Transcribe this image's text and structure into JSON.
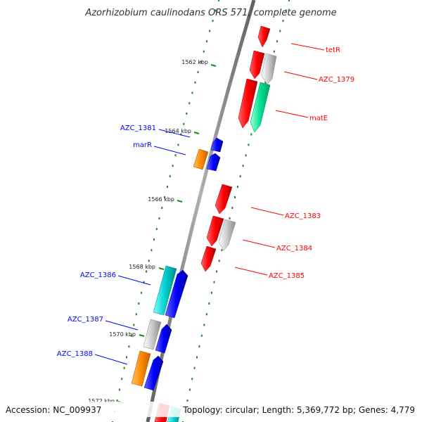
{
  "title": "Azorhizobium caulinodans ORS 571, complete genome",
  "footer": {
    "accession": "Accession: NC_009937",
    "summary": "Topology: circular; Length: 5,369,772 bp; Genes: 4,779"
  },
  "ticks": [
    {
      "label": "1562 kbp"
    },
    {
      "label": "1564 kbp"
    },
    {
      "label": "1566 kbp"
    },
    {
      "label": "1568 kbp"
    },
    {
      "label": "1570 kbp"
    },
    {
      "label": "1572 kbp"
    }
  ],
  "genes": [
    {
      "id": "tetR",
      "label": "tetR",
      "color": "#ff0000",
      "icon": "gene-arrow-icon"
    },
    {
      "id": "azc1379",
      "label": "AZC_1379",
      "color": "#c0c0c0",
      "icon": "gene-arrow-icon"
    },
    {
      "id": "matE",
      "label": "matE",
      "color": "#00e090",
      "icon": "gene-arrow-icon"
    },
    {
      "id": "azc1381",
      "label": "AZC_1381",
      "color": "#0000ff",
      "icon": "gene-arrow-icon"
    },
    {
      "id": "marR",
      "label": "marR",
      "color": "#ff8c00",
      "icon": "gene-arrow-icon"
    },
    {
      "id": "azc1383",
      "label": "AZC_1383",
      "color": "#ff0000",
      "icon": "gene-arrow-icon"
    },
    {
      "id": "azc1384",
      "label": "AZC_1384",
      "color": "#c0c0c0",
      "icon": "gene-arrow-icon"
    },
    {
      "id": "azc1385",
      "label": "AZC_1385",
      "color": "#ff0000",
      "icon": "gene-arrow-icon"
    },
    {
      "id": "azc1386",
      "label": "AZC_1386",
      "color": "#00c8c8",
      "icon": "gene-arrow-icon"
    },
    {
      "id": "azc1387",
      "label": "AZC_1387",
      "color": "#c0c0c0",
      "icon": "gene-arrow-icon"
    },
    {
      "id": "azc1388",
      "label": "AZC_1388",
      "color": "#ff8c00",
      "icon": "gene-arrow-icon"
    }
  ],
  "colors": {
    "forward_label": "#ff0000",
    "reverse_label": "#0000ff",
    "backbone": "#808080",
    "dots": "#1a8a1a"
  }
}
